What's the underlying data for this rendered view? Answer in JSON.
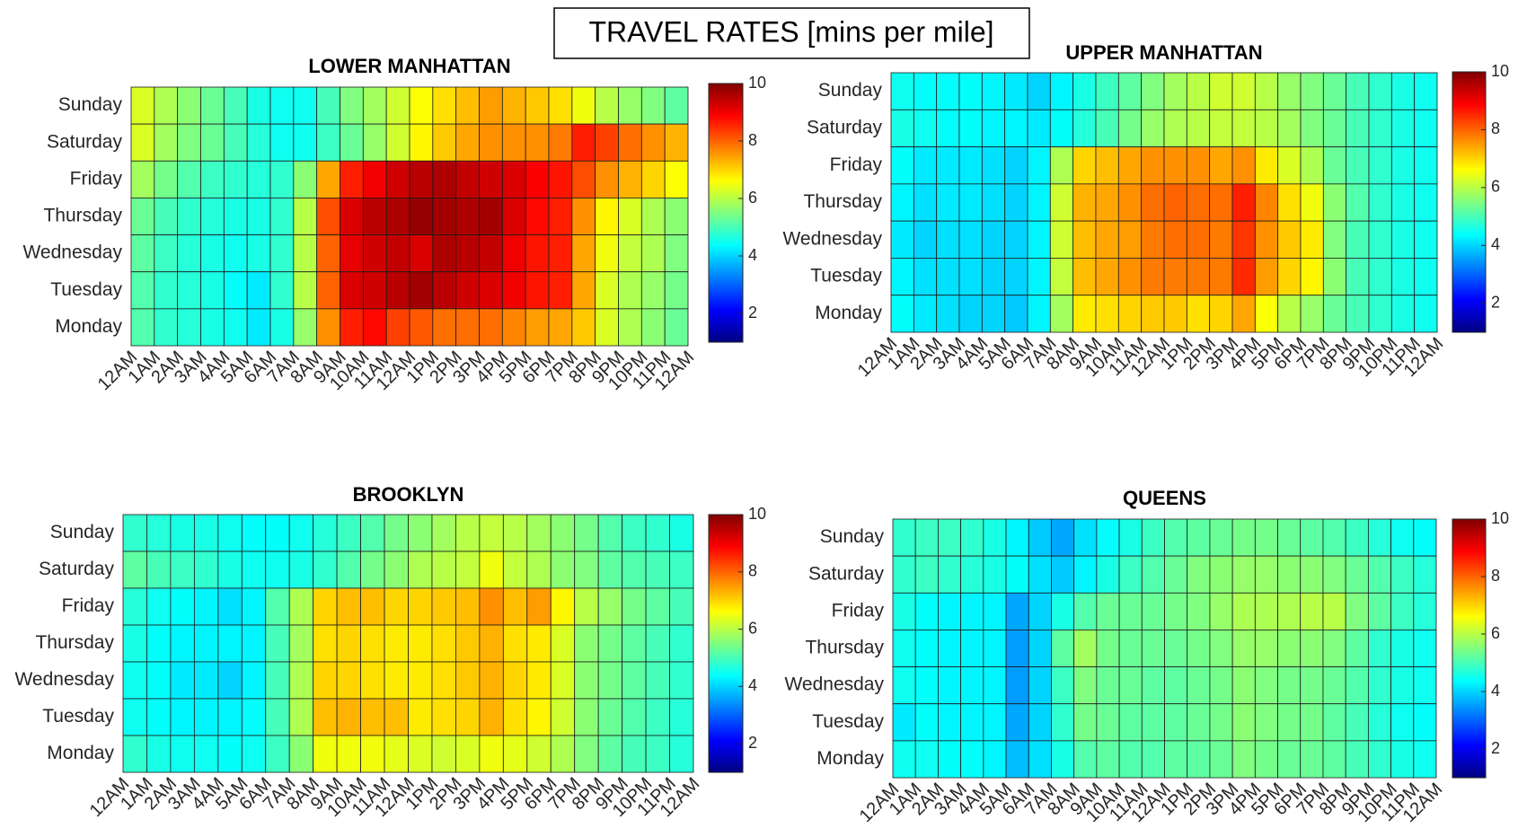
{
  "title": "TRAVEL RATES [mins per mile]",
  "chart_data": [
    {
      "type": "heatmap",
      "title": "LOWER MANHATTAN",
      "colormap": "jet",
      "x_labels": [
        "12AM",
        "1AM",
        "2AM",
        "3AM",
        "4AM",
        "5AM",
        "6AM",
        "7AM",
        "8AM",
        "9AM",
        "10AM",
        "11AM",
        "12AM",
        "1PM",
        "2PM",
        "3PM",
        "4PM",
        "5PM",
        "6PM",
        "7PM",
        "8PM",
        "9PM",
        "10PM",
        "11PM",
        "12AM"
      ],
      "y_labels": [
        "Sunday",
        "Saturday",
        "Friday",
        "Thursday",
        "Wednesday",
        "Tuesday",
        "Monday"
      ],
      "clim": [
        1,
        10
      ],
      "cticks": [
        2,
        4,
        6,
        8,
        10
      ],
      "values": [
        [
          6.3,
          5.9,
          5.6,
          5.3,
          5.0,
          4.6,
          4.5,
          4.5,
          5.0,
          5.5,
          5.8,
          6.2,
          6.6,
          6.9,
          7.2,
          7.5,
          7.3,
          7.1,
          6.9,
          6.5,
          6.0,
          5.7,
          5.5,
          5.2
        ],
        [
          6.3,
          5.8,
          5.5,
          5.3,
          5.0,
          4.7,
          4.5,
          4.5,
          4.9,
          5.3,
          5.7,
          6.2,
          6.7,
          7.1,
          7.4,
          7.6,
          7.6,
          7.6,
          7.8,
          8.6,
          8.3,
          7.9,
          7.6,
          7.3
        ],
        [
          5.8,
          5.4,
          5.1,
          4.9,
          4.8,
          4.7,
          4.8,
          5.6,
          7.4,
          8.6,
          9.0,
          9.3,
          9.5,
          9.6,
          9.4,
          9.3,
          9.2,
          8.9,
          8.7,
          8.2,
          7.6,
          7.3,
          7.0,
          6.6
        ],
        [
          5.3,
          5.0,
          4.8,
          4.7,
          4.6,
          4.6,
          4.8,
          6.0,
          8.2,
          9.2,
          9.5,
          9.6,
          9.8,
          9.7,
          9.6,
          9.7,
          9.2,
          8.8,
          8.6,
          7.6,
          6.7,
          6.3,
          5.9,
          5.6
        ],
        [
          5.2,
          4.9,
          4.7,
          4.6,
          4.5,
          4.6,
          4.8,
          6.0,
          8.0,
          9.1,
          9.3,
          9.4,
          9.2,
          9.6,
          9.5,
          9.4,
          9.0,
          8.7,
          8.6,
          7.4,
          6.5,
          6.1,
          5.9,
          5.5
        ],
        [
          5.1,
          4.8,
          4.7,
          4.6,
          4.4,
          4.2,
          4.8,
          6.0,
          8.0,
          9.2,
          9.3,
          9.5,
          9.7,
          9.5,
          9.3,
          9.2,
          9.0,
          8.7,
          8.6,
          7.4,
          6.3,
          5.9,
          5.7,
          5.4
        ],
        [
          5.1,
          4.8,
          4.7,
          4.6,
          4.5,
          4.2,
          4.6,
          5.7,
          7.6,
          8.6,
          8.8,
          8.3,
          8.1,
          7.9,
          7.9,
          7.9,
          7.7,
          7.5,
          7.4,
          7.1,
          6.3,
          5.9,
          5.6,
          5.3
        ]
      ]
    },
    {
      "type": "heatmap",
      "title": "UPPER MANHATTAN",
      "colormap": "jet",
      "x_labels": [
        "12AM",
        "1AM",
        "2AM",
        "3AM",
        "4AM",
        "5AM",
        "6AM",
        "7AM",
        "8AM",
        "9AM",
        "10AM",
        "11AM",
        "12AM",
        "1PM",
        "2PM",
        "3PM",
        "4PM",
        "5PM",
        "6PM",
        "7PM",
        "8PM",
        "9PM",
        "10PM",
        "11PM",
        "12AM"
      ],
      "y_labels": [
        "Sunday",
        "Saturday",
        "Friday",
        "Thursday",
        "Wednesday",
        "Tuesday",
        "Monday"
      ],
      "clim": [
        1,
        10
      ],
      "cticks": [
        2,
        4,
        6,
        8,
        10
      ],
      "values": [
        [
          4.5,
          4.4,
          4.4,
          4.4,
          4.3,
          4.2,
          4.0,
          4.3,
          4.6,
          4.9,
          5.2,
          5.5,
          5.8,
          6.0,
          6.2,
          6.2,
          6.0,
          5.7,
          5.5,
          5.3,
          5.0,
          4.8,
          4.6,
          4.5
        ],
        [
          4.6,
          4.5,
          4.4,
          4.4,
          4.3,
          4.3,
          4.2,
          4.4,
          4.7,
          5.0,
          5.4,
          5.7,
          5.9,
          6.0,
          6.1,
          6.1,
          6.0,
          5.8,
          5.5,
          5.3,
          5.0,
          4.8,
          4.6,
          4.5
        ],
        [
          4.4,
          4.2,
          4.2,
          4.2,
          4.1,
          4.0,
          4.3,
          5.9,
          7.0,
          7.2,
          7.4,
          7.6,
          7.6,
          7.6,
          7.4,
          7.6,
          6.8,
          6.3,
          5.9,
          5.3,
          5.0,
          4.8,
          4.6,
          4.5
        ],
        [
          4.3,
          4.1,
          4.2,
          4.2,
          4.1,
          4.0,
          4.3,
          6.2,
          7.3,
          7.4,
          7.6,
          7.9,
          8.0,
          7.9,
          7.9,
          8.6,
          7.7,
          6.9,
          6.5,
          5.6,
          5.1,
          4.8,
          4.6,
          4.5
        ],
        [
          4.2,
          4.0,
          4.1,
          4.1,
          4.0,
          4.0,
          4.3,
          6.2,
          7.2,
          7.4,
          7.5,
          7.8,
          7.9,
          7.9,
          7.8,
          8.4,
          7.6,
          7.1,
          6.8,
          5.5,
          5.0,
          4.8,
          4.6,
          4.5
        ],
        [
          4.3,
          4.1,
          4.1,
          4.1,
          4.0,
          4.0,
          4.3,
          6.1,
          7.2,
          7.4,
          7.6,
          7.8,
          7.8,
          7.8,
          7.8,
          8.5,
          7.5,
          7.0,
          6.7,
          5.6,
          5.0,
          4.8,
          4.6,
          4.5
        ],
        [
          4.4,
          4.2,
          4.1,
          4.0,
          4.0,
          3.9,
          4.3,
          5.8,
          6.8,
          6.9,
          7.0,
          7.1,
          7.1,
          6.9,
          7.0,
          7.4,
          6.6,
          6.0,
          5.7,
          5.3,
          5.0,
          4.8,
          4.6,
          4.5
        ]
      ]
    },
    {
      "type": "heatmap",
      "title": "BROOKLYN",
      "colormap": "jet",
      "x_labels": [
        "12AM",
        "1AM",
        "2AM",
        "3AM",
        "4AM",
        "5AM",
        "6AM",
        "7AM",
        "8AM",
        "9AM",
        "10AM",
        "11AM",
        "12AM",
        "1PM",
        "2PM",
        "3PM",
        "4PM",
        "5PM",
        "6PM",
        "7PM",
        "8PM",
        "9PM",
        "10PM",
        "11PM",
        "12AM"
      ],
      "y_labels": [
        "Sunday",
        "Saturday",
        "Friday",
        "Thursday",
        "Wednesday",
        "Tuesday",
        "Monday"
      ],
      "clim": [
        1,
        10
      ],
      "cticks": [
        2,
        4,
        6,
        8,
        10
      ],
      "values": [
        [
          4.8,
          4.7,
          4.6,
          4.6,
          4.5,
          4.4,
          4.4,
          4.5,
          4.7,
          4.9,
          5.1,
          5.4,
          5.6,
          5.8,
          6.0,
          6.1,
          6.0,
          5.8,
          5.6,
          5.4,
          5.1,
          4.9,
          4.8,
          4.6
        ],
        [
          5.2,
          5.0,
          4.9,
          4.8,
          4.6,
          4.5,
          4.5,
          4.6,
          4.8,
          5.1,
          5.4,
          5.6,
          5.9,
          6.0,
          6.1,
          6.5,
          6.1,
          5.9,
          5.6,
          5.5,
          5.2,
          5.1,
          5.0,
          4.9
        ],
        [
          4.7,
          4.5,
          4.4,
          4.3,
          4.1,
          4.3,
          5.1,
          5.9,
          7.0,
          7.2,
          7.2,
          7.0,
          7.0,
          7.1,
          7.2,
          7.6,
          7.2,
          7.5,
          6.7,
          6.0,
          5.7,
          5.4,
          5.2,
          5.0
        ],
        [
          4.6,
          4.4,
          4.3,
          4.3,
          4.3,
          4.3,
          5.0,
          5.8,
          6.9,
          7.0,
          6.9,
          6.8,
          6.8,
          6.9,
          7.1,
          7.3,
          6.9,
          6.8,
          6.3,
          5.6,
          5.4,
          5.2,
          5.0,
          4.8
        ],
        [
          4.5,
          4.4,
          4.2,
          4.2,
          4.0,
          4.3,
          5.0,
          5.9,
          7.0,
          7.0,
          6.9,
          6.8,
          6.8,
          6.9,
          7.1,
          7.3,
          7.0,
          6.8,
          6.3,
          5.6,
          5.4,
          5.2,
          5.0,
          4.8
        ],
        [
          4.5,
          4.4,
          4.3,
          4.3,
          4.3,
          4.4,
          5.0,
          5.9,
          7.2,
          7.3,
          7.2,
          7.2,
          6.8,
          6.9,
          7.0,
          7.3,
          6.9,
          6.7,
          6.2,
          5.6,
          5.3,
          5.1,
          4.9,
          4.7
        ],
        [
          4.8,
          4.6,
          4.5,
          4.5,
          4.4,
          4.5,
          4.9,
          5.6,
          6.5,
          6.5,
          6.5,
          6.4,
          6.3,
          6.2,
          6.3,
          6.5,
          6.4,
          6.2,
          5.9,
          5.5,
          5.2,
          5.0,
          4.9,
          4.7
        ]
      ]
    },
    {
      "type": "heatmap",
      "title": "QUEENS",
      "colormap": "jet",
      "x_labels": [
        "12AM",
        "1AM",
        "2AM",
        "3AM",
        "4AM",
        "5AM",
        "6AM",
        "7AM",
        "8AM",
        "9AM",
        "10AM",
        "11AM",
        "12AM",
        "1PM",
        "2PM",
        "3PM",
        "4PM",
        "5PM",
        "6PM",
        "7PM",
        "8PM",
        "9PM",
        "10PM",
        "11PM",
        "12AM"
      ],
      "y_labels": [
        "Sunday",
        "Saturday",
        "Friday",
        "Thursday",
        "Wednesday",
        "Tuesday",
        "Monday"
      ],
      "clim": [
        1,
        10
      ],
      "cticks": [
        2,
        4,
        6,
        8,
        10
      ],
      "values": [
        [
          4.8,
          4.9,
          4.9,
          4.8,
          4.6,
          4.3,
          3.9,
          3.6,
          4.1,
          4.4,
          4.6,
          4.9,
          5.1,
          5.2,
          5.3,
          5.4,
          5.4,
          5.3,
          5.2,
          5.1,
          4.9,
          4.7,
          4.5,
          4.4
        ],
        [
          4.8,
          4.9,
          4.8,
          4.7,
          4.6,
          4.4,
          4.1,
          3.9,
          4.3,
          4.6,
          4.9,
          5.1,
          5.3,
          5.5,
          5.6,
          5.7,
          5.7,
          5.6,
          5.6,
          5.5,
          5.3,
          5.1,
          4.9,
          4.7
        ],
        [
          4.6,
          4.4,
          4.3,
          4.3,
          4.3,
          3.6,
          4.0,
          4.6,
          5.1,
          5.3,
          5.3,
          5.3,
          5.4,
          5.5,
          5.7,
          5.9,
          5.9,
          5.9,
          6.0,
          6.0,
          5.5,
          5.2,
          4.9,
          4.7
        ],
        [
          4.5,
          4.4,
          4.3,
          4.3,
          4.3,
          3.5,
          4.0,
          5.2,
          5.8,
          5.4,
          5.3,
          5.3,
          5.3,
          5.4,
          5.5,
          5.7,
          5.7,
          5.6,
          5.6,
          5.5,
          5.2,
          4.8,
          4.6,
          4.5
        ],
        [
          4.5,
          4.4,
          4.3,
          4.3,
          4.3,
          3.5,
          4.0,
          4.9,
          5.5,
          5.3,
          5.3,
          5.2,
          5.2,
          5.3,
          5.4,
          5.6,
          5.5,
          5.4,
          5.4,
          5.3,
          5.1,
          4.8,
          4.6,
          4.5
        ],
        [
          4.2,
          4.4,
          4.3,
          4.3,
          4.3,
          3.6,
          4.0,
          4.8,
          5.4,
          5.3,
          5.2,
          5.2,
          5.2,
          5.3,
          5.4,
          5.6,
          5.5,
          5.4,
          5.4,
          5.2,
          5.0,
          4.7,
          4.5,
          4.4
        ],
        [
          4.5,
          4.5,
          4.4,
          4.4,
          4.3,
          3.8,
          4.1,
          4.6,
          5.1,
          5.2,
          5.1,
          5.1,
          5.2,
          5.2,
          5.3,
          5.5,
          5.4,
          5.3,
          5.3,
          5.2,
          5.0,
          4.8,
          4.6,
          4.5
        ]
      ]
    }
  ]
}
